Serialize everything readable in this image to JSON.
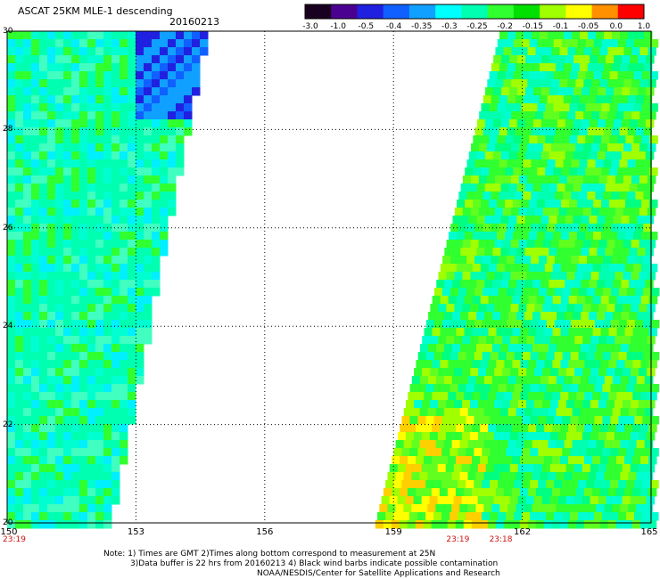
{
  "header": {
    "product": "ASCAT 25KM MLE-1 descending",
    "date": "20160213"
  },
  "colorbar": {
    "labels": [
      "-3.0",
      "-1.0",
      "-0.5",
      "-0.4",
      "-0.35",
      "-0.3",
      "-0.25",
      "-0.2",
      "-0.15",
      "-0.1",
      "-0.05",
      "0.0",
      "1.0"
    ],
    "colors": [
      "#1a0020",
      "#4a0090",
      "#2020e0",
      "#1060ff",
      "#10a0ff",
      "#00ffff",
      "#00ffb0",
      "#30ff30",
      "#00e000",
      "#a0ff00",
      "#ffff00",
      "#ff9000",
      "#ff0000"
    ]
  },
  "map": {
    "lon_labels": [
      "150",
      "153",
      "156",
      "159",
      "162",
      "165"
    ],
    "lat_labels": [
      "30",
      "28",
      "26",
      "24",
      "22",
      "20"
    ],
    "lon_range": [
      150,
      165
    ],
    "lat_range": [
      20,
      30
    ],
    "grid_line_style": "dotted"
  },
  "pass_times": [
    {
      "label": "23:19",
      "lon": 150
    },
    {
      "label": "23:19",
      "lon": 160.5
    },
    {
      "label": "23:18",
      "lon": 161.5
    }
  ],
  "notes": [
    "Note: 1) Times are GMT 2)Times along bottom correspond to measurement at 25N",
    "3)Data buffer is 22 hrs from 20160213 4) Black wind barbs indicate possible contamination",
    "NOAA/NESDIS/Center for Satellite Applications and Research"
  ]
}
